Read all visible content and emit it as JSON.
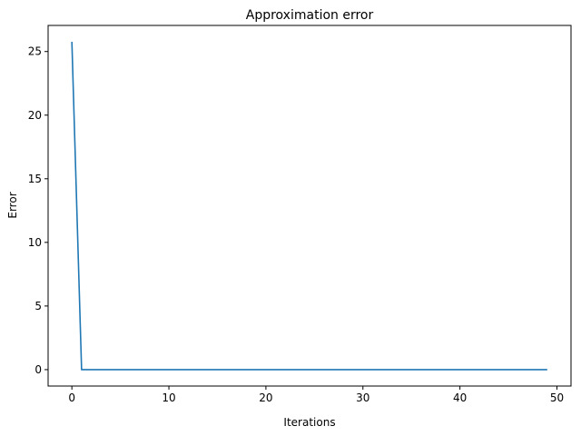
{
  "chart_data": {
    "type": "line",
    "title": "Approximation error",
    "xlabel": "Iterations",
    "ylabel": "Error",
    "xlim": [
      -2.45,
      51.45
    ],
    "ylim": [
      -1.29,
      27.05
    ],
    "xticks": [
      0,
      10,
      20,
      30,
      40,
      50
    ],
    "yticks": [
      0,
      5,
      10,
      15,
      20,
      25
    ],
    "grid": false,
    "series": [
      {
        "color": "#1f77b4",
        "x": [
          0,
          1,
          2,
          3,
          4,
          5,
          6,
          7,
          8,
          9,
          10,
          11,
          12,
          13,
          14,
          15,
          16,
          17,
          18,
          19,
          20,
          21,
          22,
          23,
          24,
          25,
          26,
          27,
          28,
          29,
          30,
          31,
          32,
          33,
          34,
          35,
          36,
          37,
          38,
          39,
          40,
          41,
          42,
          43,
          44,
          45,
          46,
          47,
          48,
          49
        ],
        "y": [
          25.76,
          0,
          0,
          0,
          0,
          0,
          0,
          0,
          0,
          0,
          0,
          0,
          0,
          0,
          0,
          0,
          0,
          0,
          0,
          0,
          0,
          0,
          0,
          0,
          0,
          0,
          0,
          0,
          0,
          0,
          0,
          0,
          0,
          0,
          0,
          0,
          0,
          0,
          0,
          0,
          0,
          0,
          0,
          0,
          0,
          0,
          0,
          0,
          0,
          0
        ]
      }
    ]
  }
}
